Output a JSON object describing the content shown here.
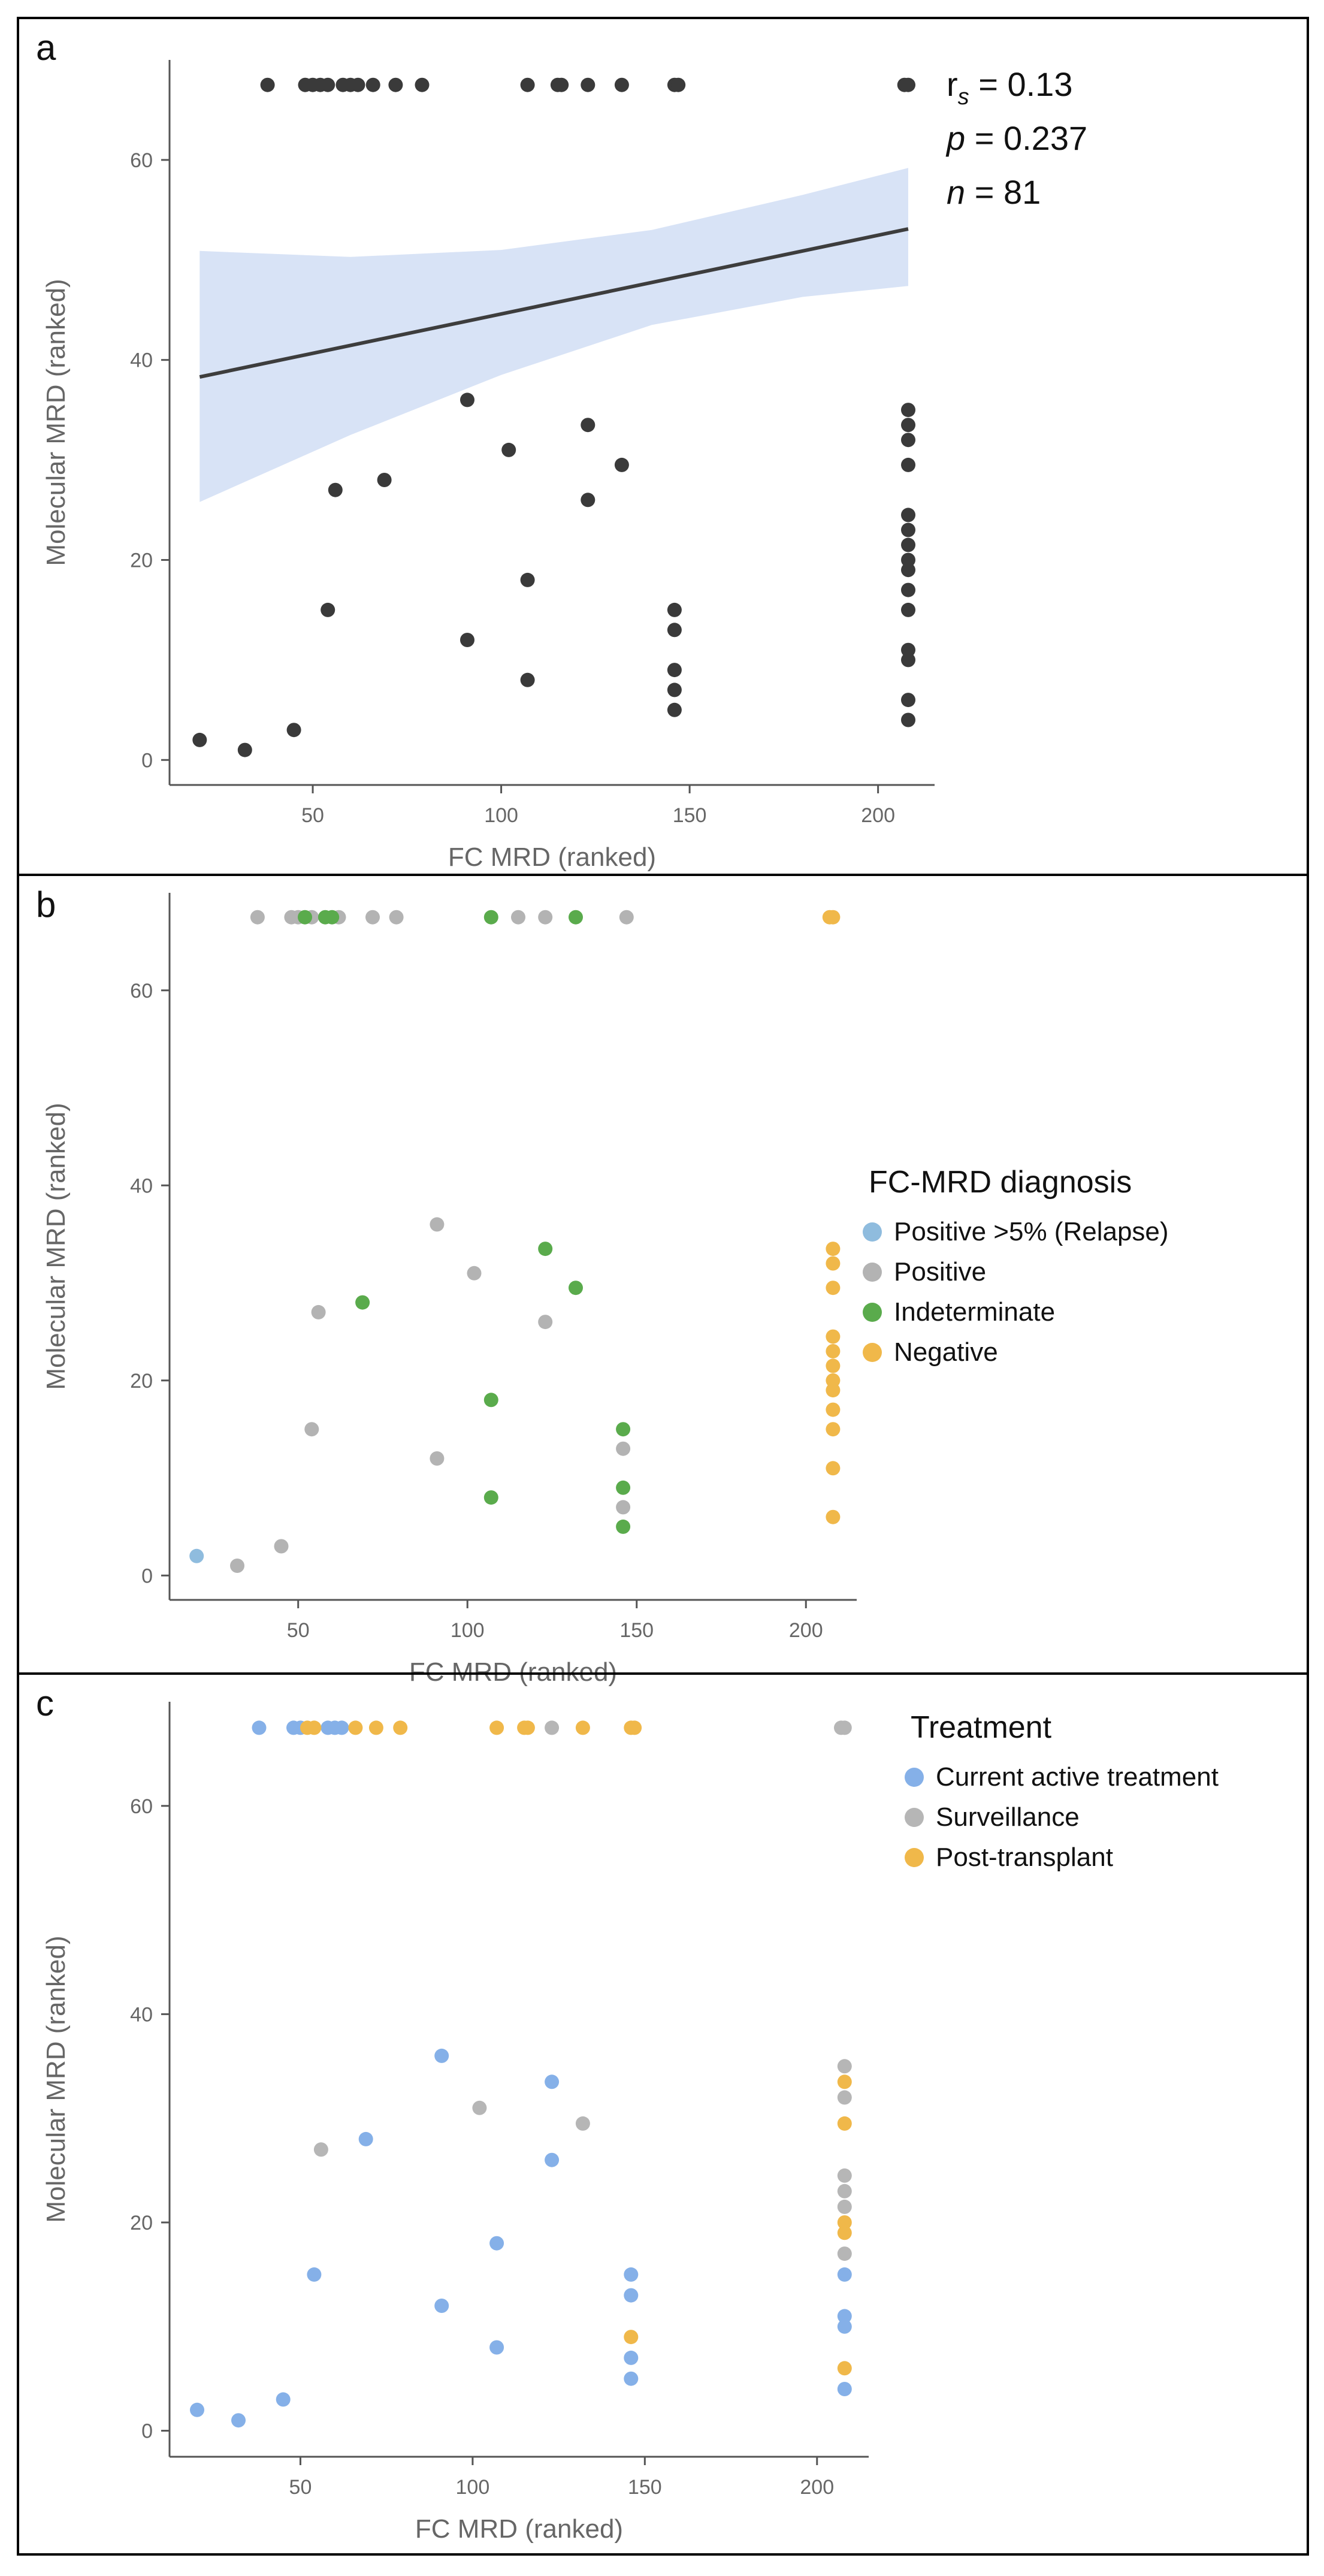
{
  "colors": {
    "point_dark": "#3a3a3a",
    "regression_line": "#3d3d3d",
    "confidence_band": "#d8e3f6",
    "axis": "#555555",
    "tick_label": "#666666",
    "axis_label": "#666666",
    "panel_border": "#000000",
    "text_dark": "#111111"
  },
  "chart_data": [
    {
      "panel_label": "a",
      "type": "scatter",
      "xlabel": "FC MRD (ranked)",
      "ylabel": "Molecular MRD (ranked)",
      "xlim": [
        12,
        215
      ],
      "ylim": [
        -2.5,
        70
      ],
      "xticks": [
        "50",
        "100",
        "150",
        "200"
      ],
      "yticks": [
        "0",
        "20",
        "40",
        "60"
      ],
      "grid": false,
      "stats": {
        "rs_label": "r",
        "rs_sub": "s",
        "rs_value": "= 0.13",
        "p_label": "p",
        "p_value": "= 0.237",
        "n_label": "n",
        "n_value": "= 81"
      },
      "regression": {
        "line": [
          [
            20,
            38.3
          ],
          [
            208,
            53.1
          ]
        ],
        "band": {
          "x": [
            20,
            60,
            100,
            140,
            180,
            208
          ],
          "lower": [
            25.8,
            32.5,
            38.5,
            43.5,
            46.3,
            47.4
          ],
          "upper": [
            50.9,
            50.3,
            51.0,
            53.0,
            56.5,
            59.2
          ]
        }
      },
      "series": [
        {
          "color": "#3a3a3a",
          "points": [
            [
              38,
              67.5
            ],
            [
              48,
              67.5
            ],
            [
              50,
              67.5
            ],
            [
              52,
              67.5
            ],
            [
              54,
              67.5
            ],
            [
              58,
              67.5
            ],
            [
              60,
              67.5
            ],
            [
              62,
              67.5
            ],
            [
              66,
              67.5
            ],
            [
              72,
              67.5
            ],
            [
              79,
              67.5
            ],
            [
              107,
              67.5
            ],
            [
              115,
              67.5
            ],
            [
              116,
              67.5
            ],
            [
              123,
              67.5
            ],
            [
              132,
              67.5
            ],
            [
              146,
              67.5
            ],
            [
              147,
              67.5
            ],
            [
              207,
              67.5
            ],
            [
              208,
              67.5
            ],
            [
              91,
              36
            ],
            [
              102,
              31
            ],
            [
              123,
              33.5
            ],
            [
              123,
              26
            ],
            [
              132,
              29.5
            ],
            [
              56,
              27
            ],
            [
              69,
              28
            ],
            [
              54,
              15
            ],
            [
              91,
              12
            ],
            [
              107,
              18
            ],
            [
              107,
              8
            ],
            [
              146,
              15
            ],
            [
              146,
              13
            ],
            [
              146,
              9
            ],
            [
              146,
              7
            ],
            [
              146,
              5
            ],
            [
              208,
              35
            ],
            [
              208,
              33.5
            ],
            [
              208,
              32
            ],
            [
              208,
              29.5
            ],
            [
              208,
              24.5
            ],
            [
              208,
              23
            ],
            [
              208,
              21.5
            ],
            [
              208,
              20
            ],
            [
              208,
              19
            ],
            [
              208,
              17
            ],
            [
              208,
              15
            ],
            [
              208,
              11
            ],
            [
              208,
              10
            ],
            [
              208,
              6
            ],
            [
              208,
              4
            ],
            [
              20,
              2
            ],
            [
              32,
              1
            ],
            [
              45,
              3
            ]
          ]
        }
      ]
    },
    {
      "panel_label": "b",
      "type": "scatter",
      "xlabel": "FC MRD (ranked)",
      "ylabel": "Molecular MRD (ranked)",
      "xlim": [
        12,
        215
      ],
      "ylim": [
        -2.5,
        70
      ],
      "xticks": [
        "50",
        "100",
        "150",
        "200"
      ],
      "yticks": [
        "0",
        "20",
        "40",
        "60"
      ],
      "grid": false,
      "legend": {
        "title": "FC-MRD diagnosis",
        "position": "right"
      },
      "series": [
        {
          "name": "Positive >5% (Relapse)",
          "color": "#8fbcde",
          "points": [
            [
              20,
              2
            ]
          ]
        },
        {
          "name": "Positive",
          "color": "#b3b3b3",
          "points": [
            [
              38,
              67.5
            ],
            [
              48,
              67.5
            ],
            [
              50,
              67.5
            ],
            [
              54,
              67.5
            ],
            [
              62,
              67.5
            ],
            [
              72,
              67.5
            ],
            [
              79,
              67.5
            ],
            [
              115,
              67.5
            ],
            [
              123,
              67.5
            ],
            [
              147,
              67.5
            ],
            [
              91,
              36
            ],
            [
              102,
              31
            ],
            [
              123,
              26
            ],
            [
              56,
              27
            ],
            [
              54,
              15
            ],
            [
              91,
              12
            ],
            [
              146,
              13
            ],
            [
              146,
              7
            ],
            [
              45,
              3
            ],
            [
              32,
              1
            ]
          ]
        },
        {
          "name": "Indeterminate",
          "color": "#5aab4c",
          "points": [
            [
              52,
              67.5
            ],
            [
              58,
              67.5
            ],
            [
              60,
              67.5
            ],
            [
              107,
              67.5
            ],
            [
              132,
              67.5
            ],
            [
              123,
              33.5
            ],
            [
              132,
              29.5
            ],
            [
              69,
              28
            ],
            [
              107,
              18
            ],
            [
              107,
              8
            ],
            [
              146,
              15
            ],
            [
              146,
              9
            ],
            [
              146,
              5
            ]
          ]
        },
        {
          "name": "Negative",
          "color": "#f0b84a",
          "points": [
            [
              207,
              67.5
            ],
            [
              208,
              67.5
            ],
            [
              208,
              33.5
            ],
            [
              208,
              32
            ],
            [
              208,
              29.5
            ],
            [
              208,
              24.5
            ],
            [
              208,
              23
            ],
            [
              208,
              21.5
            ],
            [
              208,
              20
            ],
            [
              208,
              19
            ],
            [
              208,
              17
            ],
            [
              208,
              15
            ],
            [
              208,
              11
            ],
            [
              208,
              6
            ]
          ]
        }
      ]
    },
    {
      "panel_label": "c",
      "type": "scatter",
      "xlabel": "FC MRD (ranked)",
      "ylabel": "Molecular MRD (ranked)",
      "xlim": [
        12,
        215
      ],
      "ylim": [
        -2.5,
        70
      ],
      "xticks": [
        "50",
        "100",
        "150",
        "200"
      ],
      "yticks": [
        "0",
        "20",
        "40",
        "60"
      ],
      "grid": false,
      "legend": {
        "title": "Treatment",
        "position": "right"
      },
      "series": [
        {
          "name": "Current active treatment",
          "color": "#85b0e8",
          "points": [
            [
              38,
              67.5
            ],
            [
              48,
              67.5
            ],
            [
              50,
              67.5
            ],
            [
              58,
              67.5
            ],
            [
              60,
              67.5
            ],
            [
              62,
              67.5
            ],
            [
              91,
              36
            ],
            [
              123,
              33.5
            ],
            [
              123,
              26
            ],
            [
              69,
              28
            ],
            [
              54,
              15
            ],
            [
              107,
              18
            ],
            [
              91,
              12
            ],
            [
              107,
              8
            ],
            [
              146,
              15
            ],
            [
              146,
              13
            ],
            [
              146,
              7
            ],
            [
              146,
              5
            ],
            [
              208,
              15
            ],
            [
              208,
              11
            ],
            [
              208,
              10
            ],
            [
              208,
              4
            ],
            [
              20,
              2
            ],
            [
              32,
              1
            ],
            [
              45,
              3
            ]
          ]
        },
        {
          "name": "Surveillance",
          "color": "#b6b6b6",
          "points": [
            [
              123,
              67.5
            ],
            [
              207,
              67.5
            ],
            [
              208,
              67.5
            ],
            [
              102,
              31
            ],
            [
              132,
              29.5
            ],
            [
              56,
              27
            ],
            [
              208,
              35
            ],
            [
              208,
              32
            ],
            [
              208,
              24.5
            ],
            [
              208,
              23
            ],
            [
              208,
              21.5
            ],
            [
              208,
              17
            ]
          ]
        },
        {
          "name": "Post-transplant",
          "color": "#f0b84a",
          "points": [
            [
              52,
              67.5
            ],
            [
              54,
              67.5
            ],
            [
              66,
              67.5
            ],
            [
              72,
              67.5
            ],
            [
              79,
              67.5
            ],
            [
              107,
              67.5
            ],
            [
              115,
              67.5
            ],
            [
              116,
              67.5
            ],
            [
              132,
              67.5
            ],
            [
              146,
              67.5
            ],
            [
              147,
              67.5
            ],
            [
              208,
              33.5
            ],
            [
              208,
              29.5
            ],
            [
              208,
              20
            ],
            [
              208,
              19
            ],
            [
              208,
              6
            ],
            [
              146,
              9
            ]
          ]
        }
      ]
    }
  ]
}
